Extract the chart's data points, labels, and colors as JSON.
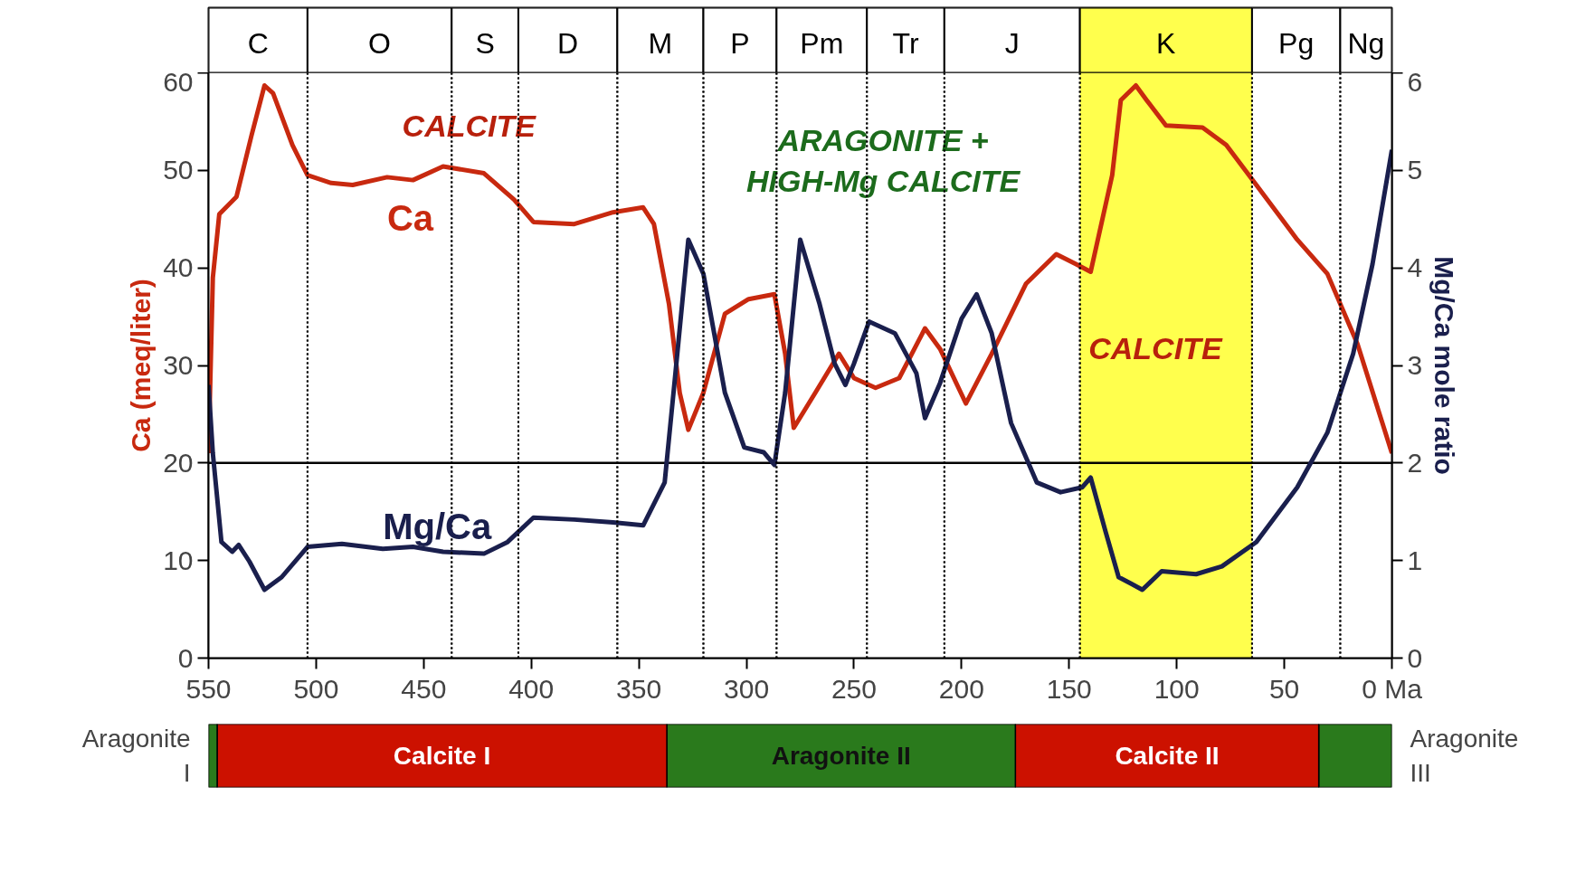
{
  "chart_data": [
    {
      "type": "line",
      "ylabel": "Ca (meq/liter)",
      "y2label": "Mg/Ca mole ratio",
      "xlim": [
        550,
        0
      ],
      "xticks": [
        550,
        500,
        450,
        400,
        350,
        300,
        250,
        200,
        150,
        100,
        50,
        {
          "value": 0,
          "label": "0 Ma"
        }
      ],
      "ylim": [
        0,
        60
      ],
      "yticks": [
        0,
        10,
        20,
        30,
        40,
        50,
        60
      ],
      "y2lim": [
        0,
        6
      ],
      "y2ticks": [
        0,
        1,
        2,
        3,
        4,
        5,
        6
      ],
      "series": [
        {
          "name": "Ca",
          "color": "#c8290f",
          "x": [
            550,
            548,
            545,
            537,
            530,
            524,
            520,
            511,
            504,
            493,
            483,
            467,
            455,
            441,
            422,
            408,
            399,
            380,
            362,
            348,
            343,
            336,
            331,
            327,
            320,
            310,
            299,
            287,
            282,
            278,
            268,
            257,
            250,
            240,
            229,
            217,
            210,
            198,
            186,
            170,
            156,
            147,
            140,
            130,
            126,
            119,
            114,
            105,
            88,
            77,
            63,
            44,
            30,
            16,
            0
          ],
          "values": [
            21,
            39,
            45.5,
            47.3,
            53.6,
            58.7,
            57.9,
            52.6,
            49.5,
            48.7,
            48.5,
            49.3,
            49,
            50.4,
            49.7,
            47,
            44.7,
            44.5,
            45.7,
            46.2,
            44.5,
            36.3,
            27.2,
            23.4,
            27.2,
            35.3,
            36.8,
            37.3,
            31.2,
            23.6,
            27.2,
            31.2,
            28.7,
            27.7,
            28.7,
            33.8,
            31.7,
            26.1,
            31.2,
            38.4,
            41.4,
            40.4,
            39.6,
            49.5,
            57.2,
            58.7,
            57.2,
            54.6,
            54.4,
            52.6,
            48.5,
            42.9,
            39.4,
            32.2,
            21
          ]
        },
        {
          "name": "Mg/Ca",
          "color": "#1a1f4d",
          "axis": "y2",
          "x": [
            550,
            548,
            544,
            539,
            536,
            531,
            524,
            516,
            504,
            488,
            469,
            455,
            441,
            422,
            411,
            399,
            380,
            362,
            348,
            338,
            333,
            327,
            320,
            310,
            301,
            292,
            287,
            282,
            275,
            266,
            259,
            254,
            250,
            243,
            231,
            221,
            217,
            210,
            200,
            193,
            186,
            177,
            165,
            154,
            144,
            140,
            133,
            127,
            121,
            116,
            107,
            91,
            79,
            63,
            44,
            30,
            18,
            9,
            0
          ],
          "values": [
            2.8,
            2.1,
            1.19,
            1.09,
            1.16,
            0.99,
            0.7,
            0.83,
            1.14,
            1.17,
            1.12,
            1.14,
            1.09,
            1.07,
            1.19,
            1.44,
            1.42,
            1.39,
            1.36,
            1.8,
            2.92,
            4.29,
            3.94,
            2.72,
            2.16,
            2.11,
            1.98,
            2.72,
            4.29,
            3.63,
            3.02,
            2.8,
            3.02,
            3.45,
            3.33,
            2.92,
            2.46,
            2.82,
            3.48,
            3.73,
            3.33,
            2.41,
            1.8,
            1.7,
            1.75,
            1.85,
            1.29,
            0.83,
            0.76,
            0.7,
            0.89,
            0.86,
            0.94,
            1.19,
            1.75,
            2.31,
            3.12,
            4.04,
            5.21
          ]
        }
      ],
      "ref_lines": [
        {
          "axis": "y",
          "value": 20
        }
      ],
      "bands": [
        {
          "axis": "x",
          "from": 550,
          "to": 504,
          "label": "C",
          "color": "#ffffff"
        },
        {
          "axis": "x",
          "from": 504,
          "to": 437,
          "label": "O",
          "color": "#ffffff"
        },
        {
          "axis": "x",
          "from": 437,
          "to": 406,
          "label": "S",
          "color": "#ffffff"
        },
        {
          "axis": "x",
          "from": 406,
          "to": 360,
          "label": "D",
          "color": "#ffffff"
        },
        {
          "axis": "x",
          "from": 360,
          "to": 320,
          "label": "M",
          "color": "#ffffff"
        },
        {
          "axis": "x",
          "from": 320,
          "to": 286,
          "label": "P",
          "color": "#ffffff"
        },
        {
          "axis": "x",
          "from": 286,
          "to": 244,
          "label": "Pm",
          "color": "#ffffff"
        },
        {
          "axis": "x",
          "from": 244,
          "to": 208,
          "label": "Tr",
          "color": "#ffffff"
        },
        {
          "axis": "x",
          "from": 208,
          "to": 145,
          "label": "J",
          "color": "#ffffff"
        },
        {
          "axis": "x",
          "from": 145,
          "to": 65,
          "label": "K",
          "color": "#ffff4d"
        },
        {
          "axis": "x",
          "from": 65,
          "to": 24,
          "label": "Pg",
          "color": "#ffffff"
        },
        {
          "axis": "x",
          "from": 24,
          "to": 0,
          "label": "Ng",
          "color": "#ffffff"
        }
      ],
      "annotations": [
        "CALCITE",
        "ARAGONITE +\nHIGH-Mg CALCITE",
        "CALCITE"
      ]
    },
    {
      "type": "bar",
      "orientation": "horizontal",
      "stacked": true,
      "categories": [
        null
      ],
      "xlim": [
        550,
        0
      ],
      "tick_labels": false,
      "series": [
        {
          "name": "Aragonite III",
          "color": "#2a7a1c",
          "values": [
            34
          ]
        },
        {
          "name": "Calcite II",
          "color": "#cc1100",
          "values": [
            141
          ]
        },
        {
          "name": "Aragonite II",
          "color": "#2a7a1c",
          "values": [
            162
          ]
        },
        {
          "name": "Calcite I",
          "color": "#cc1100",
          "values": [
            209
          ]
        },
        {
          "name": "Aragonite I",
          "color": "#2a7a1c",
          "values": [
            4
          ]
        }
      ]
    }
  ]
}
